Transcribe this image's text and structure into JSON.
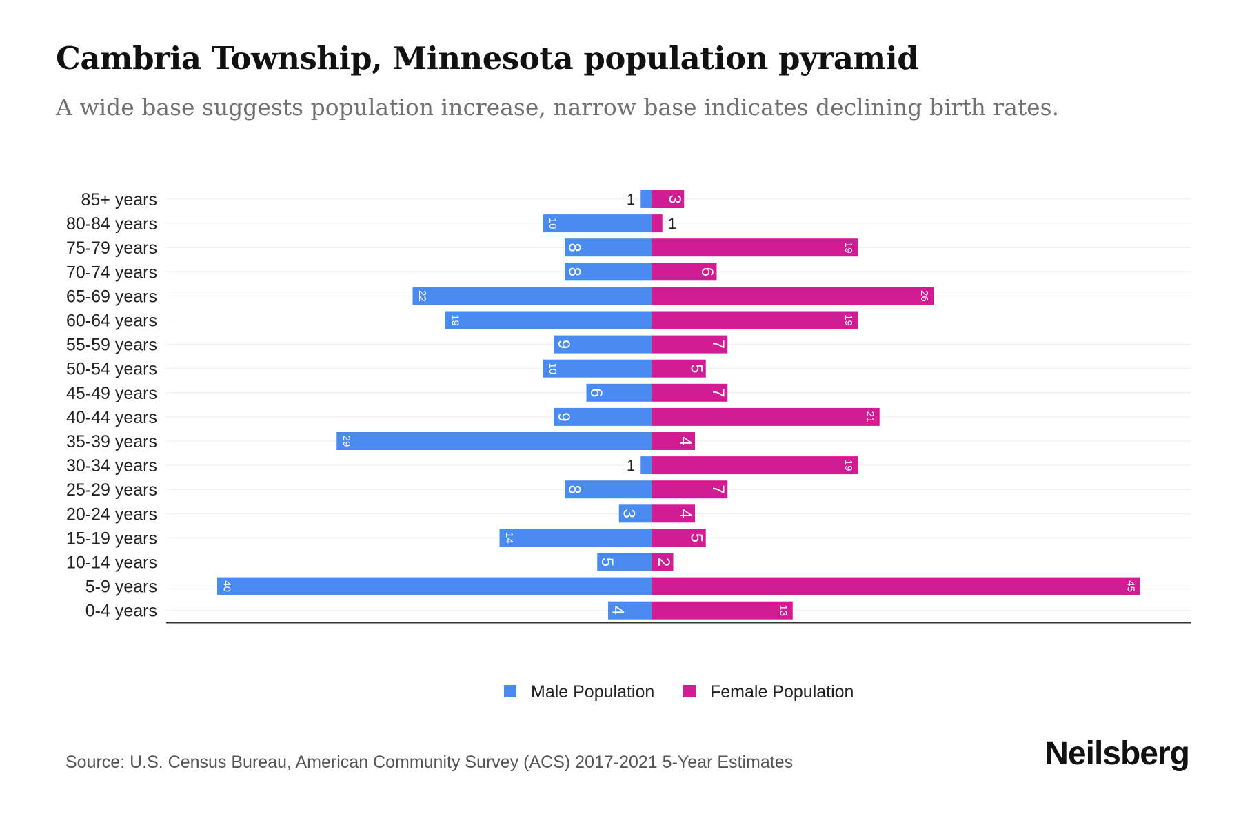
{
  "title": "Cambria Township, Minnesota population pyramid",
  "subtitle": "A wide base suggests population increase, narrow base indicates declining birth rates.",
  "source": "Source: U.S. Census Bureau, American Community Survey (ACS) 2017-2021 5-Year Estimates",
  "brand": "Neilsberg",
  "colors": {
    "male": "#4A8BF0",
    "female": "#D11C94"
  },
  "chart_data": {
    "type": "bar",
    "orientation": "horizontal-pyramid",
    "categories": [
      "85+ years",
      "80-84 years",
      "75-79 years",
      "70-74 years",
      "65-69 years",
      "60-64 years",
      "55-59 years",
      "50-54 years",
      "45-49 years",
      "40-44 years",
      "35-39 years",
      "30-34 years",
      "25-29 years",
      "20-24 years",
      "15-19 years",
      "10-14 years",
      "5-9 years",
      "0-4 years"
    ],
    "series": [
      {
        "name": "Male Population",
        "values": [
          1,
          10,
          8,
          8,
          22,
          19,
          9,
          10,
          6,
          9,
          29,
          1,
          8,
          3,
          14,
          5,
          40,
          4
        ]
      },
      {
        "name": "Female Population",
        "values": [
          3,
          1,
          19,
          6,
          26,
          19,
          7,
          5,
          7,
          21,
          4,
          19,
          7,
          4,
          5,
          2,
          45,
          13
        ]
      }
    ],
    "legend": "bottom-center",
    "grid": true
  }
}
